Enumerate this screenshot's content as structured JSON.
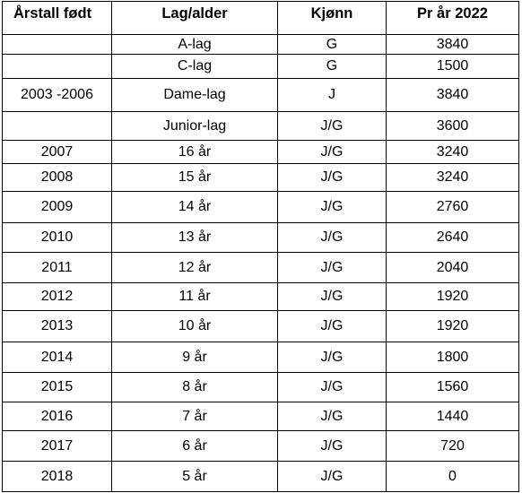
{
  "table": {
    "headers": {
      "year": "Årstall født",
      "team": "Lag/alder",
      "gender": "Kjønn",
      "price": "Pr år 2022"
    },
    "rows": [
      {
        "year": "",
        "team": "A-lag",
        "gender": "G",
        "price": "3840"
      },
      {
        "year": "",
        "team": "C-lag",
        "gender": "G",
        "price": "1500"
      },
      {
        "year": "2003 -2006",
        "team": "Dame-lag",
        "gender": "J",
        "price": "3840"
      },
      {
        "year": "",
        "team": "Junior-lag",
        "gender": "J/G",
        "price": "3600"
      },
      {
        "year": "2007",
        "team": "16 år",
        "gender": "J/G",
        "price": "3240"
      },
      {
        "year": "2008",
        "team": "15 år",
        "gender": "J/G",
        "price": "3240"
      },
      {
        "year": "2009",
        "team": "14 år",
        "gender": "J/G",
        "price": "2760"
      },
      {
        "year": "2010",
        "team": "13 år",
        "gender": "J/G",
        "price": "2640"
      },
      {
        "year": "2011",
        "team": "12 år",
        "gender": "J/G",
        "price": "2040"
      },
      {
        "year": "2012",
        "team": "11 år",
        "gender": "J/G",
        "price": "1920"
      },
      {
        "year": "2013",
        "team": "10 år",
        "gender": "J/G",
        "price": "1920"
      },
      {
        "year": "2014",
        "team": "9 år",
        "gender": "J/G",
        "price": "1800"
      },
      {
        "year": "2015",
        "team": "8 år",
        "gender": "J/G",
        "price": "1560"
      },
      {
        "year": "2016",
        "team": "7 år",
        "gender": "J/G",
        "price": "1440"
      },
      {
        "year": "2017",
        "team": "6 år",
        "gender": "J/G",
        "price": "720"
      },
      {
        "year": "2018",
        "team": "5 år",
        "gender": "J/G",
        "price": "0"
      }
    ]
  }
}
